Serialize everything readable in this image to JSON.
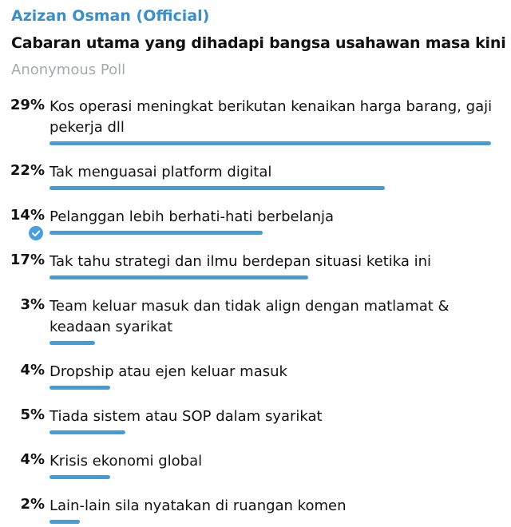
{
  "poll": {
    "channel_name": "Azizan Osman (Official)",
    "question": "Cabaran utama yang dihadapi bangsa usahawan masa kini",
    "poll_type": "Anonymous Poll",
    "options": [
      {
        "percent": "29%",
        "text": "Kos operasi meningkat  berikutan kenaikan harga barang, gaji pekerja dll",
        "value": 29
      },
      {
        "percent": "22%",
        "text": "Tak menguasai platform digital",
        "value": 22
      },
      {
        "percent": "14%",
        "text": "Pelanggan lebih berhati-hati berbelanja",
        "value": 14,
        "chosen": true
      },
      {
        "percent": "17%",
        "text": "Tak tahu strategi dan ilmu berdepan situasi ketika ini",
        "value": 17
      },
      {
        "percent": "3%",
        "text": "Team keluar masuk dan tidak align dengan matlamat & keadaan syarikat",
        "value": 3
      },
      {
        "percent": "4%",
        "text": "Dropship atau ejen keluar masuk",
        "value": 4
      },
      {
        "percent": "5%",
        "text": "Tiada sistem atau SOP dalam syarikat",
        "value": 5
      },
      {
        "percent": "4%",
        "text": "Krisis ekonomi global",
        "value": 4
      },
      {
        "percent": "2%",
        "text": "Lain-lain sila nyatakan di ruangan komen",
        "value": 2
      }
    ]
  },
  "colors": {
    "channel_name": "#3a8fc6",
    "bar": "#3fa0d8",
    "check": "#4a9ee0",
    "poll_type": "#a5a9ad"
  },
  "icons": {
    "chosen_option": "check-circle-icon"
  }
}
